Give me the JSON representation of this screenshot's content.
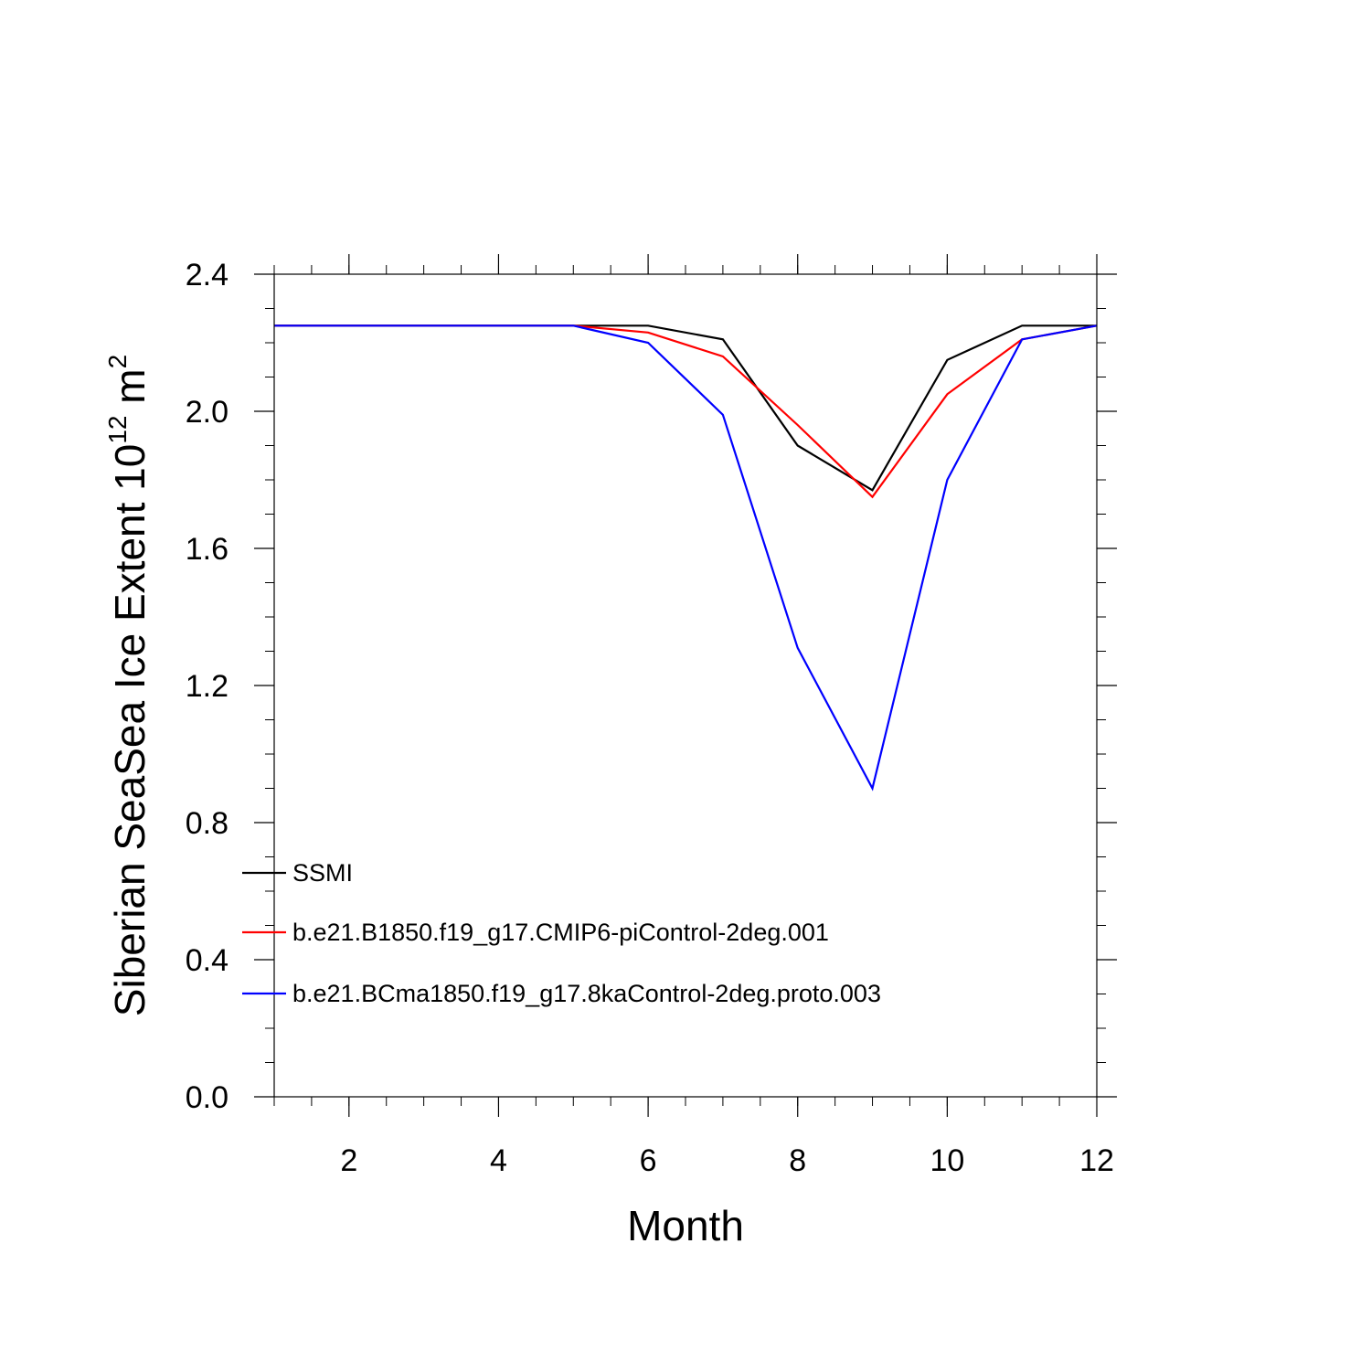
{
  "chart_data": {
    "type": "line",
    "title": "",
    "xlabel": "Month",
    "ylabel_main": "Siberian SeaSea Ice Extent 10",
    "ylabel_exp": "12",
    "ylabel_unit": "m",
    "ylabel_unit_exp": "2",
    "xlim": [
      1,
      12
    ],
    "ylim": [
      0.0,
      2.4
    ],
    "xticks": [
      2,
      4,
      6,
      8,
      10,
      12
    ],
    "xtick_labels": [
      "2",
      "4",
      "6",
      "8",
      "10",
      "12"
    ],
    "yticks": [
      0.0,
      0.4,
      0.8,
      1.2,
      1.6,
      2.0,
      2.4
    ],
    "ytick_labels": [
      "0.0",
      "0.4",
      "0.8",
      "1.2",
      "1.6",
      "2.0",
      "2.4"
    ],
    "x": [
      1,
      2,
      3,
      4,
      5,
      6,
      7,
      8,
      9,
      10,
      11,
      12
    ],
    "series": [
      {
        "name": "SSMI",
        "color": "#000000",
        "values": [
          2.25,
          2.25,
          2.25,
          2.25,
          2.25,
          2.25,
          2.21,
          1.9,
          1.77,
          2.15,
          2.25,
          2.25
        ]
      },
      {
        "name": "b.e21.B1850.f19_g17.CMIP6-piControl-2deg.001",
        "color": "#ff0000",
        "values": [
          2.25,
          2.25,
          2.25,
          2.25,
          2.25,
          2.23,
          2.16,
          1.96,
          1.75,
          2.05,
          2.21,
          2.25
        ]
      },
      {
        "name": "b.e21.BCma1850.f19_g17.8kaControl-2deg.proto.003",
        "color": "#0000ff",
        "values": [
          2.25,
          2.25,
          2.25,
          2.25,
          2.25,
          2.2,
          1.99,
          1.31,
          0.9,
          1.8,
          2.21,
          2.25
        ]
      }
    ],
    "legend_position": "bottom-left",
    "grid": false
  }
}
